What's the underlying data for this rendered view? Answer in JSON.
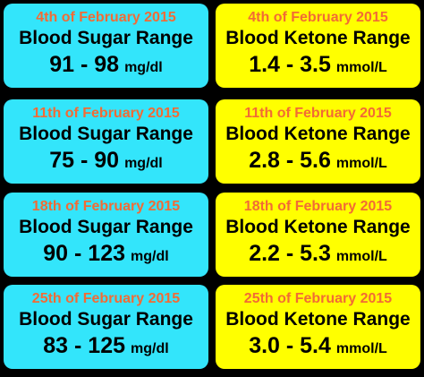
{
  "cards": [
    [
      {
        "date": "4th of February 2015",
        "title": "Blood Sugar Range",
        "value": "91 - 98",
        "unit": "mg/dl"
      },
      {
        "date": "4th of February 2015",
        "title": "Blood Ketone Range",
        "value": "1.4 - 3.5",
        "unit": "mmol/L"
      }
    ],
    [
      {
        "date": "11th of February 2015",
        "title": "Blood Sugar Range",
        "value": "75 - 90",
        "unit": "mg/dl"
      },
      {
        "date": "11th of February 2015",
        "title": "Blood Ketone Range",
        "value": "2.8 - 5.6",
        "unit": "mmol/L"
      }
    ],
    [
      {
        "date": "18th of February 2015",
        "title": "Blood Sugar Range",
        "value": "90 - 123",
        "unit": "mg/dl"
      },
      {
        "date": "18th of February 2015",
        "title": "Blood Ketone Range",
        "value": "2.2 - 5.3",
        "unit": "mmol/L"
      }
    ],
    [
      {
        "date": "25th of February 2015",
        "title": "Blood Sugar Range",
        "value": "83 - 125",
        "unit": "mg/dl"
      },
      {
        "date": "25th of February 2015",
        "title": "Blood Ketone Range",
        "value": "3.0 - 5.4",
        "unit": "mmol/L"
      }
    ]
  ]
}
